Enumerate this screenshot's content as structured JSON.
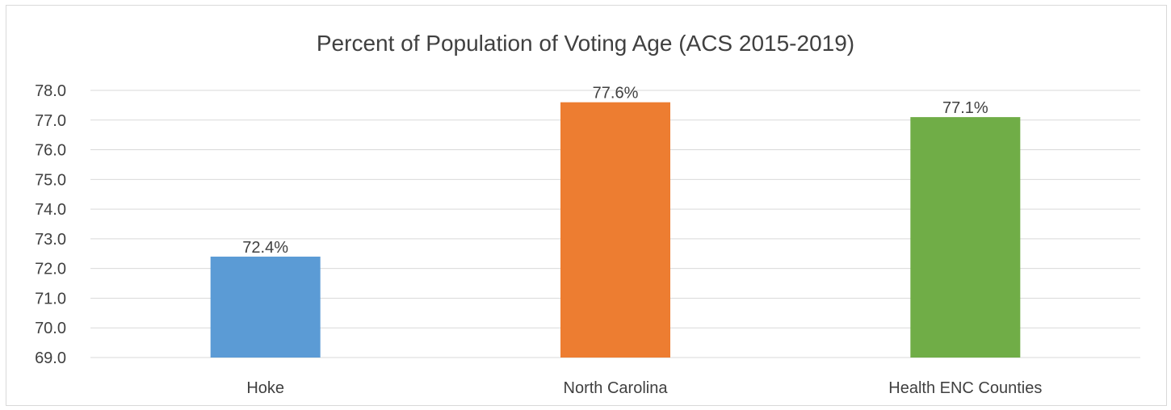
{
  "chart_data": {
    "type": "bar",
    "title": "Percent of Population of Voting Age (ACS 2015-2019)",
    "categories": [
      "Hoke",
      "North Carolina",
      "Health ENC Counties"
    ],
    "values": [
      72.4,
      77.6,
      77.1
    ],
    "data_labels": [
      "72.4%",
      "77.6%",
      "77.1%"
    ],
    "colors": [
      "#5b9bd5",
      "#ed7d31",
      "#70ad47"
    ],
    "ylim": [
      69.0,
      78.0
    ],
    "yticks": [
      "69.0",
      "70.0",
      "71.0",
      "72.0",
      "73.0",
      "74.0",
      "75.0",
      "76.0",
      "77.0",
      "78.0"
    ],
    "grid": true,
    "legend": "none",
    "xlabel": "",
    "ylabel": ""
  }
}
